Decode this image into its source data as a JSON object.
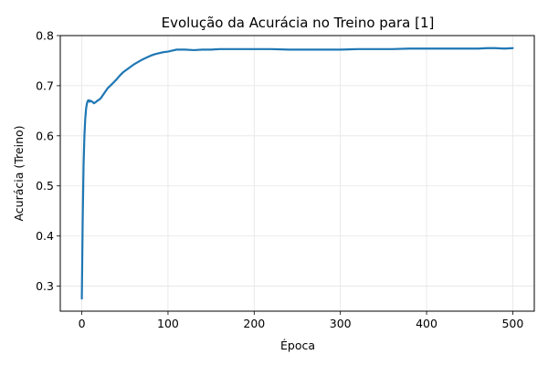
{
  "chart_data": {
    "type": "line",
    "title": "Evolução da Acurácia no Treino para [1]",
    "xlabel": "Época",
    "ylabel": "Acurácia (Treino)",
    "xlim": [
      -25,
      525
    ],
    "ylim": [
      0.25,
      0.8
    ],
    "xticks": [
      0,
      100,
      200,
      300,
      400,
      500
    ],
    "yticks": [
      0.3,
      0.4,
      0.5,
      0.6,
      0.7,
      0.8
    ],
    "xtick_labels": [
      "0",
      "100",
      "200",
      "300",
      "400",
      "500"
    ],
    "ytick_labels": [
      "0.3",
      "0.4",
      "0.5",
      "0.6",
      "0.7",
      "0.8"
    ],
    "grid": true,
    "legend": false,
    "series": [
      {
        "color": "#1f77b4",
        "x": [
          0,
          1,
          2,
          3,
          4,
          5,
          6,
          7,
          8,
          9,
          10,
          12,
          14,
          16,
          18,
          20,
          22,
          24,
          26,
          28,
          30,
          33,
          36,
          40,
          44,
          48,
          52,
          56,
          60,
          65,
          70,
          75,
          80,
          85,
          90,
          95,
          100,
          105,
          110,
          120,
          130,
          140,
          150,
          160,
          170,
          180,
          190,
          200,
          220,
          240,
          260,
          280,
          300,
          320,
          340,
          360,
          380,
          400,
          420,
          440,
          460,
          470,
          480,
          490,
          500
        ],
        "y": [
          0.275,
          0.43,
          0.54,
          0.6,
          0.635,
          0.655,
          0.665,
          0.67,
          0.671,
          0.668,
          0.67,
          0.668,
          0.665,
          0.667,
          0.67,
          0.672,
          0.675,
          0.68,
          0.685,
          0.69,
          0.695,
          0.7,
          0.705,
          0.712,
          0.72,
          0.727,
          0.732,
          0.737,
          0.742,
          0.747,
          0.752,
          0.756,
          0.76,
          0.763,
          0.765,
          0.767,
          0.768,
          0.77,
          0.772,
          0.772,
          0.771,
          0.772,
          0.772,
          0.773,
          0.773,
          0.773,
          0.773,
          0.773,
          0.773,
          0.772,
          0.772,
          0.772,
          0.772,
          0.773,
          0.773,
          0.773,
          0.774,
          0.774,
          0.774,
          0.774,
          0.774,
          0.775,
          0.775,
          0.774,
          0.775
        ]
      }
    ]
  }
}
